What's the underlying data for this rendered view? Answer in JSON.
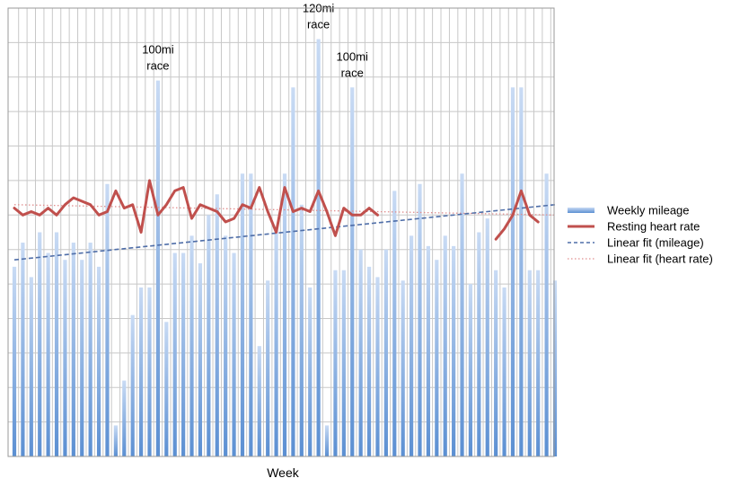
{
  "chart_data": {
    "type": "bar",
    "title": "",
    "xlabel": "Week",
    "ylabel": "",
    "grid": true,
    "legend_position": "right",
    "ylim": [
      0,
      130
    ],
    "bar_values": [
      55,
      62,
      52,
      65,
      59,
      65,
      57,
      62,
      57,
      62,
      55,
      79,
      9,
      22,
      41,
      49,
      49,
      109,
      39,
      59,
      59,
      64,
      56,
      70,
      76,
      64,
      59,
      82,
      82,
      32,
      51,
      66,
      82,
      107,
      73,
      49,
      121,
      9,
      54,
      54,
      107,
      60,
      55,
      52,
      60,
      77,
      51,
      64,
      79,
      61,
      57,
      64,
      61,
      82,
      50,
      65,
      69,
      54,
      49,
      107,
      107,
      54,
      54,
      82,
      51
    ],
    "heart_rate": [
      72,
      70,
      71,
      70,
      72,
      70,
      73,
      75,
      74,
      73,
      70,
      71,
      77,
      72,
      73,
      65,
      80,
      70,
      73,
      77,
      78,
      69,
      73,
      72,
      71,
      68,
      69,
      73,
      72,
      78,
      71,
      65,
      78,
      71,
      72,
      71,
      77,
      71,
      64,
      72,
      70,
      70,
      72,
      70,
      null,
      null,
      null,
      null,
      null,
      null,
      null,
      null,
      null,
      null,
      null,
      null,
      null,
      63,
      66,
      70,
      77,
      70,
      68
    ],
    "mileage_fit": {
      "start": 57,
      "end": 73
    },
    "heart_rate_fit": {
      "start": 73,
      "end": 70
    },
    "annotations": [
      {
        "bar_index": 17,
        "lines": [
          "100mi",
          "race"
        ]
      },
      {
        "bar_index": 36,
        "lines": [
          "120mi",
          "race"
        ]
      },
      {
        "bar_index": 40,
        "lines": [
          "100mi",
          "race"
        ]
      }
    ],
    "legend": [
      {
        "label": "Weekly mileage",
        "kind": "bar",
        "color": "#8fb4e3"
      },
      {
        "label": "Resting heart rate",
        "kind": "line",
        "color": "#c0504d"
      },
      {
        "label": "Linear fit (mileage)",
        "kind": "dashed",
        "color": "#4f6ea8"
      },
      {
        "label": "Linear fit (heart rate)",
        "kind": "dotted",
        "color": "#e08f8f"
      }
    ]
  }
}
